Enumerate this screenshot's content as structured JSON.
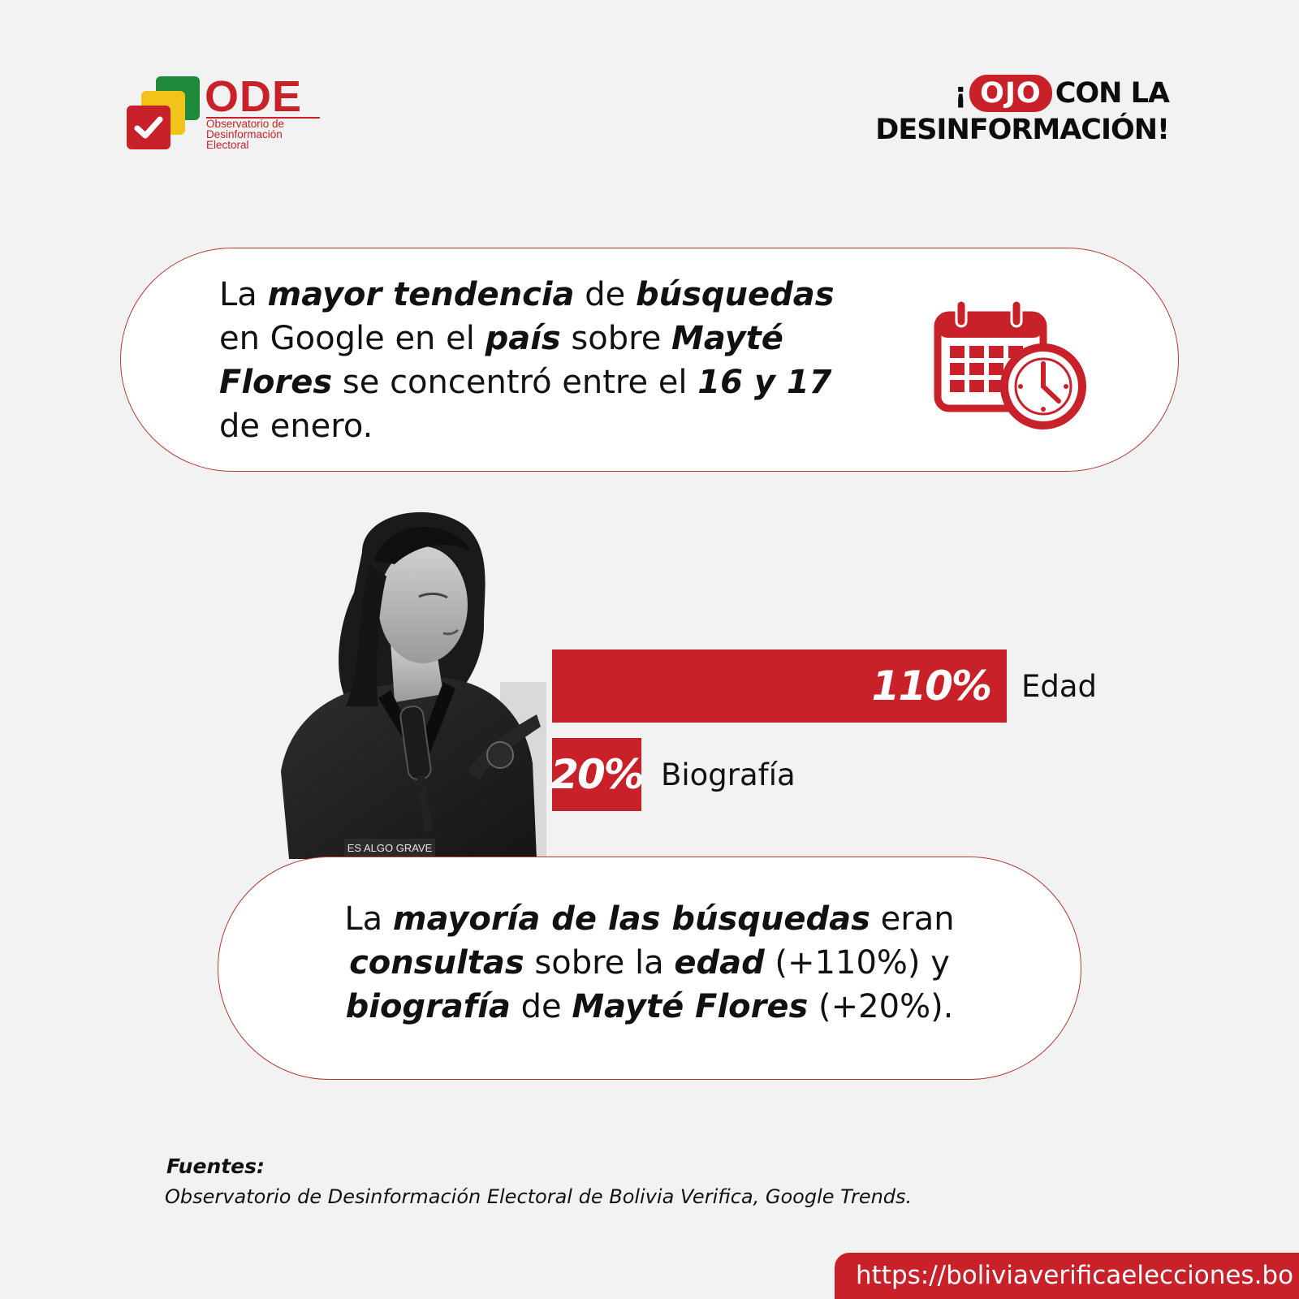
{
  "logo": {
    "name": "ODE",
    "subtitle_lines": [
      "Observatorio de",
      "Desinformación",
      "Electoral"
    ],
    "colors": {
      "green": "#1f8a3a",
      "yellow": "#f2c318",
      "red": "#c8212a"
    }
  },
  "header": {
    "prefix": "¡",
    "highlight": "OJO",
    "line1_rest": "CON LA",
    "line2": "DESINFORMACIÓN!"
  },
  "card1": {
    "t1": "La ",
    "b1": "mayor tendencia",
    "t2": " de ",
    "b2": "búsquedas",
    "t3": " en Google en el ",
    "b3": "país",
    "t4": " sobre ",
    "b4": "Mayté Flores",
    "t5": " se concentró entre el ",
    "b5": "16 y 17",
    "t6": " de enero.",
    "icon": "calendar-clock-icon"
  },
  "photo": {
    "caption": "ES ALGO GRAVE"
  },
  "chart_data": {
    "type": "bar",
    "orientation": "horizontal",
    "categories": [
      "Edad",
      "Biografía"
    ],
    "values": [
      110,
      20
    ],
    "value_labels": [
      "110%",
      "20%"
    ],
    "color": "#c8212a"
  },
  "card2": {
    "t1": "La ",
    "b1": "mayoría de las búsquedas",
    "t2": " eran ",
    "b2": "consultas",
    "t3": " sobre la ",
    "b3": "edad",
    "t4": " (+110%) y ",
    "b4": "biografía",
    "t5": " de ",
    "b5": "Mayté Flores",
    "t6": " (+20%)."
  },
  "sources": {
    "label": "Fuentes:",
    "text": "Observatorio de Desinformación Electoral de Bolivia Verifica, Google Trends."
  },
  "footer": {
    "url": "https://boliviaverificaelecciones.bo"
  },
  "accent_color": "#c8212a"
}
